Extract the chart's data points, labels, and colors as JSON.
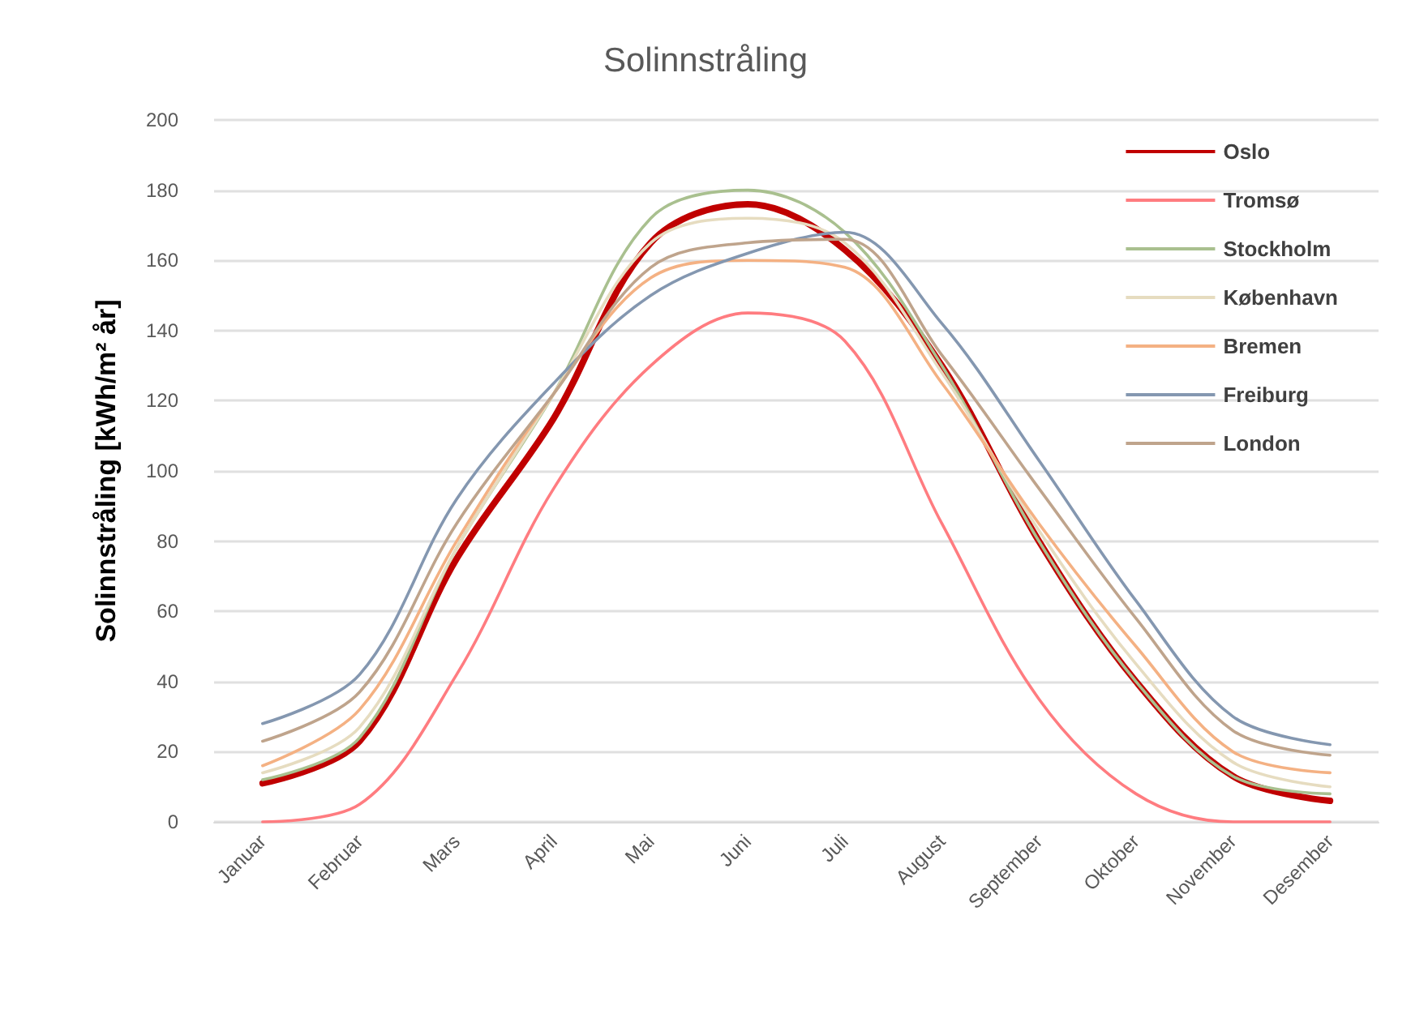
{
  "chart_data": {
    "type": "line",
    "title": "Solinnstråling",
    "ylabel": "Solinnstråling [kWh/m² år]",
    "categories": [
      "Januar",
      "Februar",
      "Mars",
      "April",
      "Mai",
      "Juni",
      "Juli",
      "August",
      "September",
      "Oktober",
      "November",
      "Desember"
    ],
    "series": [
      {
        "name": "Oslo",
        "color": "#c00000",
        "values": [
          11,
          23,
          75,
          115,
          165,
          176,
          163,
          130,
          80,
          40,
          13,
          6
        ]
      },
      {
        "name": "Tromsø",
        "color": "#ff7c80",
        "values": [
          0,
          5,
          42,
          95,
          130,
          145,
          137,
          85,
          35,
          8,
          0,
          0
        ]
      },
      {
        "name": "Stockholm",
        "color": "#a9c08f",
        "values": [
          12,
          24,
          78,
          122,
          172,
          180,
          168,
          130,
          80,
          40,
          13,
          8
        ]
      },
      {
        "name": "København",
        "color": "#e6dcc0",
        "values": [
          14,
          27,
          78,
          122,
          165,
          172,
          165,
          128,
          83,
          45,
          17,
          10
        ]
      },
      {
        "name": "Bremen",
        "color": "#f4b183",
        "values": [
          16,
          32,
          80,
          122,
          155,
          160,
          158,
          125,
          85,
          50,
          20,
          14
        ]
      },
      {
        "name": "Freiburg",
        "color": "#8497b0",
        "values": [
          28,
          42,
          92,
          125,
          150,
          162,
          168,
          142,
          103,
          63,
          30,
          22
        ]
      },
      {
        "name": "London",
        "color": "#bfa48c",
        "values": [
          23,
          37,
          85,
          122,
          158,
          165,
          166,
          133,
          95,
          58,
          26,
          19
        ]
      }
    ],
    "ylim": [
      0,
      200
    ],
    "yticks": [
      0,
      20,
      40,
      60,
      80,
      100,
      120,
      140,
      160,
      180,
      200
    ],
    "grid": "y",
    "legend": "top right",
    "marker": "none",
    "line_style": "solid"
  }
}
